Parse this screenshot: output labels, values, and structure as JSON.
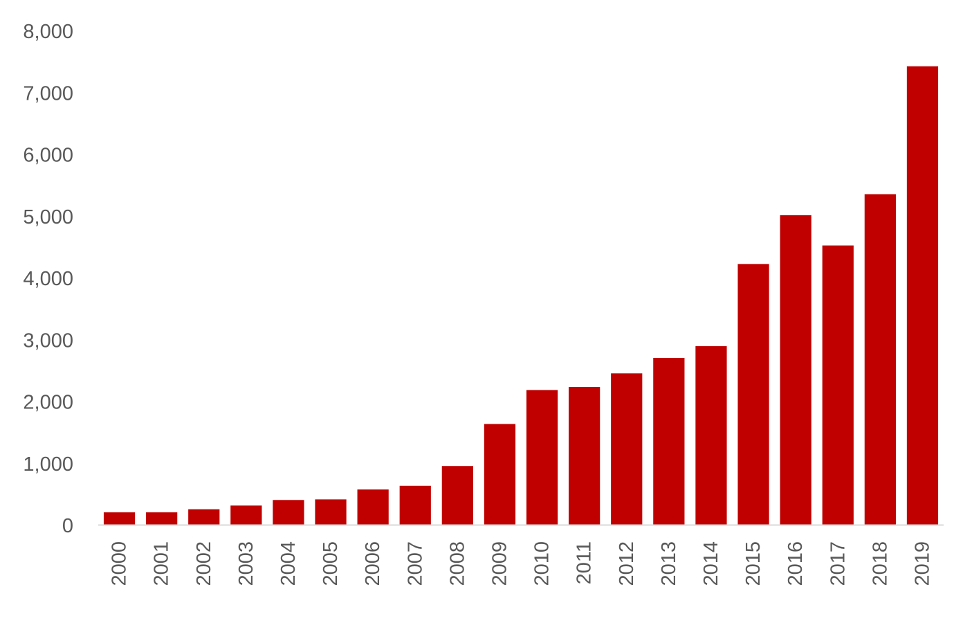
{
  "chart_data": {
    "type": "bar",
    "categories": [
      "2000",
      "2001",
      "2002",
      "2003",
      "2004",
      "2005",
      "2006",
      "2007",
      "2008",
      "2009",
      "2010",
      "2011",
      "2012",
      "2013",
      "2014",
      "2015",
      "2016",
      "2017",
      "2018",
      "2019"
    ],
    "values": [
      200,
      200,
      250,
      310,
      400,
      410,
      570,
      630,
      950,
      1630,
      2180,
      2230,
      2450,
      2700,
      2890,
      4220,
      5010,
      4520,
      5350,
      7420
    ],
    "ylim": [
      0,
      8000
    ],
    "yticks": [
      0,
      1000,
      2000,
      3000,
      4000,
      5000,
      6000,
      7000,
      8000
    ],
    "ytick_labels": [
      "0",
      "1,000",
      "2,000",
      "3,000",
      "4,000",
      "5,000",
      "6,000",
      "7,000",
      "8,000"
    ],
    "grid": false,
    "bar_color": "#C00000",
    "axis_color": "#D9D9D9",
    "label_color": "#595959"
  }
}
